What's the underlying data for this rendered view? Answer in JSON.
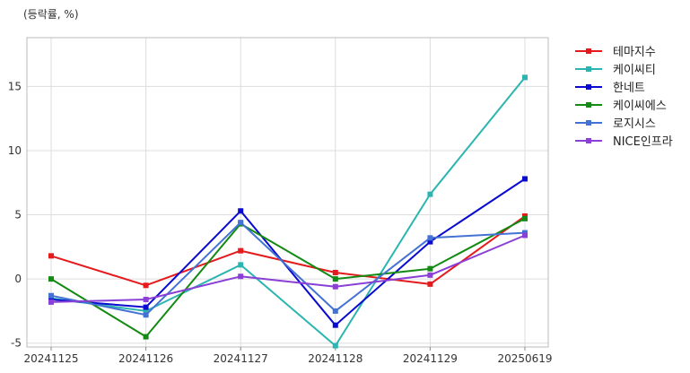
{
  "chart_data": {
    "type": "line",
    "unit_label": "(등락률, %)",
    "x": [
      "20241125",
      "20241126",
      "20241127",
      "20241128",
      "20241129",
      "20250619"
    ],
    "ylim": [
      -5.3,
      18.8
    ],
    "yticks": [
      -5,
      0,
      5,
      10,
      15
    ],
    "grid": true,
    "legend_position": "right",
    "series": [
      {
        "name": "테마지수",
        "color": "#e41a1c",
        "values": [
          1.8,
          -0.5,
          2.2,
          0.5,
          -0.4,
          4.9
        ]
      },
      {
        "name": "케이씨티",
        "color": "#2bb5b0",
        "values": [
          -1.5,
          -2.5,
          1.1,
          -5.2,
          6.6,
          15.7
        ]
      },
      {
        "name": "한네트",
        "color": "#0a0ad0",
        "values": [
          -1.6,
          -2.2,
          5.3,
          -3.6,
          2.9,
          7.8
        ]
      },
      {
        "name": "케이씨에스",
        "color": "#138a13",
        "values": [
          0.0,
          -4.5,
          4.3,
          0.0,
          0.8,
          4.7
        ]
      },
      {
        "name": "로지시스",
        "color": "#4472d4",
        "values": [
          -1.3,
          -2.8,
          4.4,
          -2.5,
          3.2,
          3.6
        ]
      },
      {
        "name": "NICE인프라",
        "color": "#8a3fd6",
        "values": [
          -1.8,
          -1.6,
          0.2,
          -0.6,
          0.3,
          3.4
        ]
      }
    ]
  }
}
